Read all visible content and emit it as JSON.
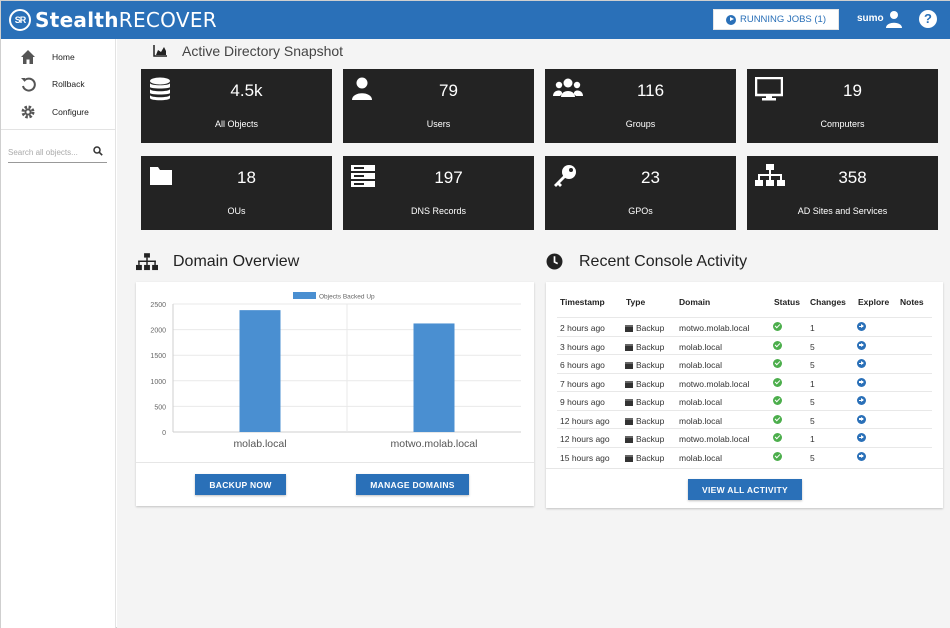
{
  "app": {
    "name_bold": "Stealth",
    "name_light": "RECOVER",
    "logo_mark": "SR"
  },
  "header": {
    "running_jobs_label": "RUNNING JOBS (1)",
    "user_name": "sumo",
    "help_label": "?"
  },
  "sidebar": {
    "items": [
      {
        "label": "Home",
        "icon": "home-icon"
      },
      {
        "label": "Rollback",
        "icon": "undo-icon"
      },
      {
        "label": "Configure",
        "icon": "gear-icon"
      }
    ],
    "search_placeholder": "Search all objects..."
  },
  "snapshot": {
    "title": "Active Directory Snapshot",
    "tiles": [
      {
        "value": "4.5k",
        "label": "All Objects",
        "icon": "database-icon"
      },
      {
        "value": "79",
        "label": "Users",
        "icon": "user-icon"
      },
      {
        "value": "116",
        "label": "Groups",
        "icon": "users-icon"
      },
      {
        "value": "19",
        "label": "Computers",
        "icon": "monitor-icon"
      },
      {
        "value": "18",
        "label": "OUs",
        "icon": "folder-icon"
      },
      {
        "value": "197",
        "label": "DNS Records",
        "icon": "server-icon"
      },
      {
        "value": "23",
        "label": "GPOs",
        "icon": "key-icon"
      },
      {
        "value": "358",
        "label": "AD Sites and Services",
        "icon": "sitemap-icon"
      }
    ]
  },
  "domain_overview": {
    "title": "Domain Overview",
    "backup_button": "BACKUP NOW",
    "manage_button": "MANAGE DOMAINS"
  },
  "chart_data": {
    "type": "bar",
    "categories": [
      "molab.local",
      "motwo.molab.local"
    ],
    "series": [
      {
        "name": "Objects Backed Up",
        "values": [
          2380,
          2120
        ]
      }
    ],
    "ylim": [
      0,
      2500
    ],
    "yticks": [
      0,
      500,
      1000,
      1500,
      2000,
      2500
    ],
    "legend": "top-center",
    "grid": true,
    "color": "#4a8fd1"
  },
  "activity": {
    "title": "Recent Console Activity",
    "columns": [
      "Timestamp",
      "Type",
      "Domain",
      "Status",
      "Changes",
      "Explore",
      "Notes"
    ],
    "rows": [
      {
        "time": "2 hours ago",
        "type": "Backup",
        "domain": "motwo.molab.local",
        "changes": "1"
      },
      {
        "time": "3 hours ago",
        "type": "Backup",
        "domain": "molab.local",
        "changes": "5"
      },
      {
        "time": "6 hours ago",
        "type": "Backup",
        "domain": "molab.local",
        "changes": "5"
      },
      {
        "time": "7 hours ago",
        "type": "Backup",
        "domain": "motwo.molab.local",
        "changes": "1"
      },
      {
        "time": "9 hours ago",
        "type": "Backup",
        "domain": "molab.local",
        "changes": "5"
      },
      {
        "time": "12 hours ago",
        "type": "Backup",
        "domain": "molab.local",
        "changes": "5"
      },
      {
        "time": "12 hours ago",
        "type": "Backup",
        "domain": "motwo.molab.local",
        "changes": "1"
      },
      {
        "time": "15 hours ago",
        "type": "Backup",
        "domain": "molab.local",
        "changes": "5"
      }
    ],
    "view_all_button": "VIEW ALL ACTIVITY"
  },
  "colors": {
    "brand": "#2a70b8",
    "tile_bg": "#232323",
    "status_ok": "#4cae4c"
  }
}
